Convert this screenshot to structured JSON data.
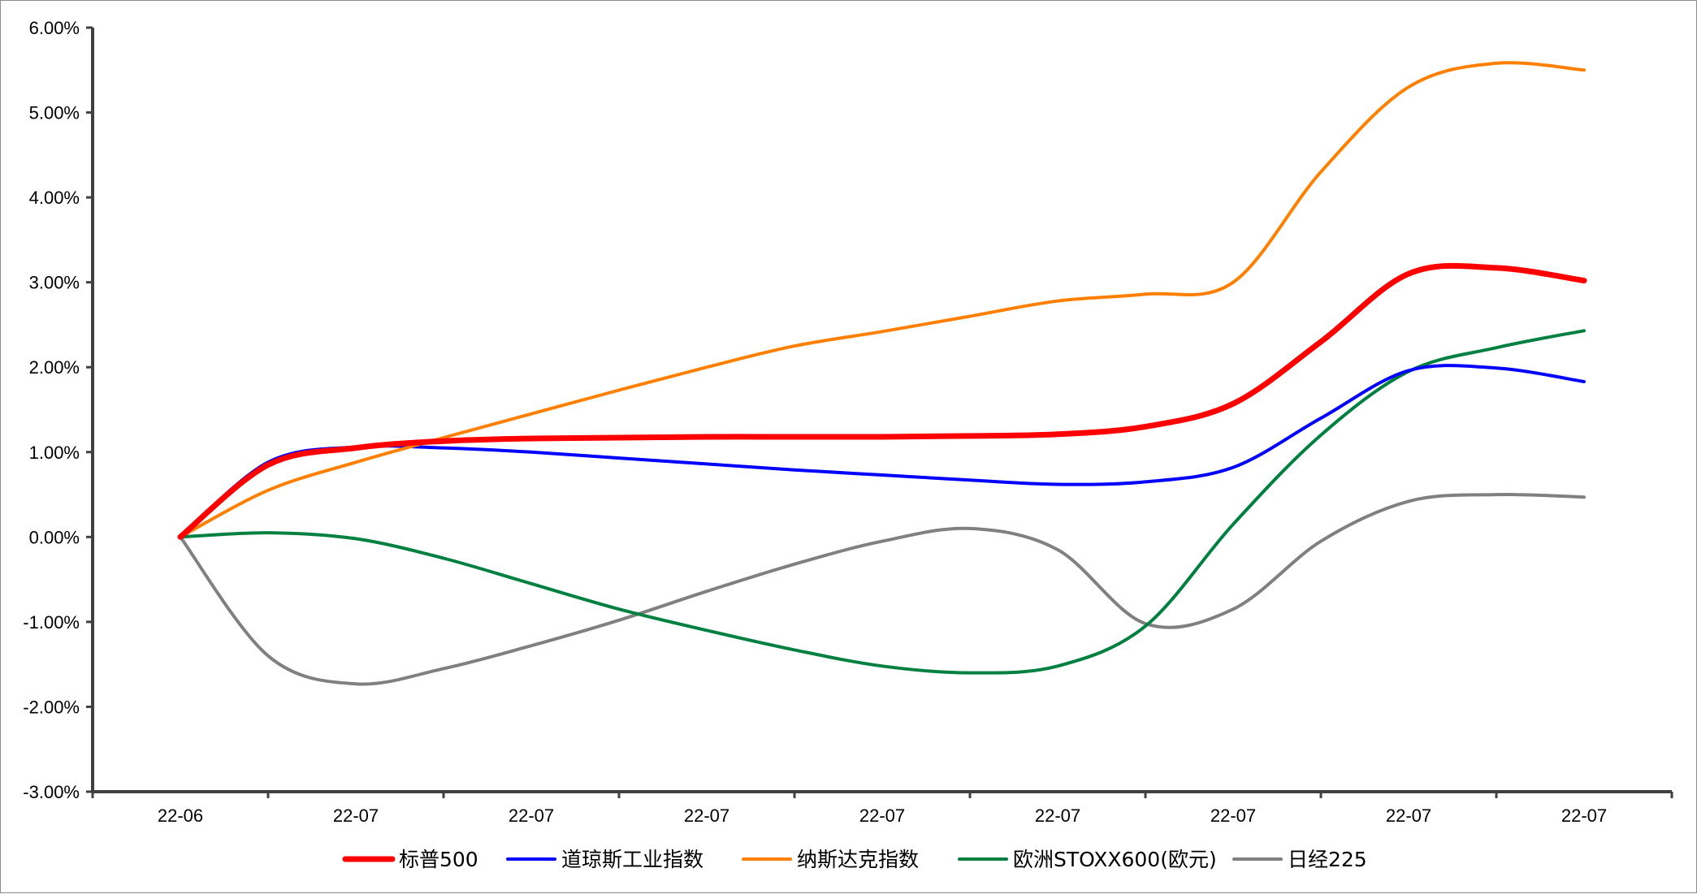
{
  "chart_data": {
    "type": "line",
    "title": "",
    "xlabel": "",
    "ylabel": "",
    "categories": [
      "22-06",
      "22-07",
      "22-07",
      "22-07",
      "22-07",
      "22-07",
      "22-07",
      "22-07",
      "22-07"
    ],
    "ylim": [
      -3,
      6
    ],
    "y_ticks": [
      -3,
      -2,
      -1,
      0,
      1,
      2,
      3,
      4,
      5,
      6
    ],
    "y_tick_labels": [
      "-3.00%",
      "-2.00%",
      "-1.00%",
      "0.00%",
      "1.00%",
      "2.00%",
      "3.00%",
      "4.00%",
      "5.00%",
      "6.00%"
    ],
    "grid": false,
    "legend_position": "bottom",
    "x": [
      0,
      1,
      2,
      3,
      4,
      5,
      6,
      7,
      8,
      9,
      10,
      11,
      12,
      13,
      14,
      15,
      16
    ],
    "series": [
      {
        "name": "标普500",
        "color": "#ff0000",
        "width": "thick",
        "values": [
          0.0,
          0.85,
          1.05,
          1.13,
          1.16,
          1.17,
          1.18,
          1.18,
          1.18,
          1.19,
          1.21,
          1.3,
          1.57,
          2.3,
          3.1,
          3.17,
          3.02
        ]
      },
      {
        "name": "道琼斯工业指数",
        "color": "#0000ff",
        "width": "normal",
        "values": [
          0.0,
          0.88,
          1.06,
          1.05,
          1.0,
          0.93,
          0.86,
          0.79,
          0.73,
          0.67,
          0.62,
          0.65,
          0.82,
          1.4,
          1.96,
          1.99,
          1.83
        ]
      },
      {
        "name": "纳斯达克指数",
        "color": "#ff8000",
        "width": "normal",
        "values": [
          0.0,
          0.55,
          0.88,
          1.17,
          1.45,
          1.73,
          2.0,
          2.25,
          2.42,
          2.6,
          2.78,
          2.86,
          3.0,
          4.3,
          5.3,
          5.58,
          5.5
        ]
      },
      {
        "name": "欧洲STOXX600(欧元)",
        "color": "#008040",
        "width": "normal",
        "values": [
          0.0,
          0.05,
          -0.02,
          -0.25,
          -0.55,
          -0.85,
          -1.1,
          -1.33,
          -1.52,
          -1.6,
          -1.52,
          -1.05,
          0.15,
          1.2,
          1.95,
          2.23,
          2.43
        ]
      },
      {
        "name": "日经225",
        "color": "#808080",
        "width": "normal",
        "values": [
          0.0,
          -1.4,
          -1.73,
          -1.55,
          -1.28,
          -0.98,
          -0.64,
          -0.32,
          -0.05,
          0.1,
          -0.15,
          -1.02,
          -0.85,
          -0.05,
          0.42,
          0.5,
          0.47
        ]
      }
    ]
  }
}
